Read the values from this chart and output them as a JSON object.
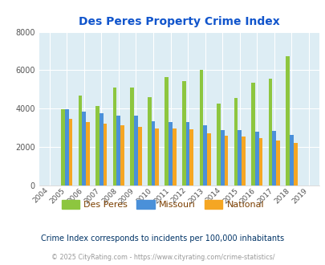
{
  "title": "Des Peres Property Crime Index",
  "years": [
    "2004",
    "2005",
    "2006",
    "2007",
    "2008",
    "2009",
    "2010",
    "2011",
    "2012",
    "2013",
    "2014",
    "2015",
    "2016",
    "2017",
    "2018",
    "2019"
  ],
  "des_peres": [
    0,
    3950,
    4700,
    4150,
    5100,
    5100,
    4600,
    5650,
    5450,
    6020,
    4250,
    4550,
    5350,
    5550,
    6750,
    0
  ],
  "missouri": [
    0,
    3950,
    3850,
    3750,
    3650,
    3650,
    3350,
    3300,
    3300,
    3120,
    2870,
    2880,
    2800,
    2850,
    2620,
    0
  ],
  "national": [
    0,
    3450,
    3300,
    3200,
    3150,
    3050,
    2980,
    2950,
    2930,
    2700,
    2600,
    2570,
    2450,
    2360,
    2210,
    0
  ],
  "des_peres_color": "#8dc63f",
  "missouri_color": "#4a90d9",
  "national_color": "#f5a623",
  "bg_color": "#ddedf4",
  "plot_bg": "#ddedf4",
  "ylim": [
    0,
    8000
  ],
  "yticks": [
    0,
    2000,
    4000,
    6000,
    8000
  ],
  "legend_labels": [
    "Des Peres",
    "Missouri",
    "National"
  ],
  "footnote1": "Crime Index corresponds to incidents per 100,000 inhabitants",
  "footnote2": "© 2025 CityRating.com - https://www.cityrating.com/crime-statistics/",
  "title_color": "#1155cc",
  "legend_color": "#7b3f00",
  "footnote1_color": "#003366",
  "footnote2_color": "#999999",
  "bar_width": 0.22
}
